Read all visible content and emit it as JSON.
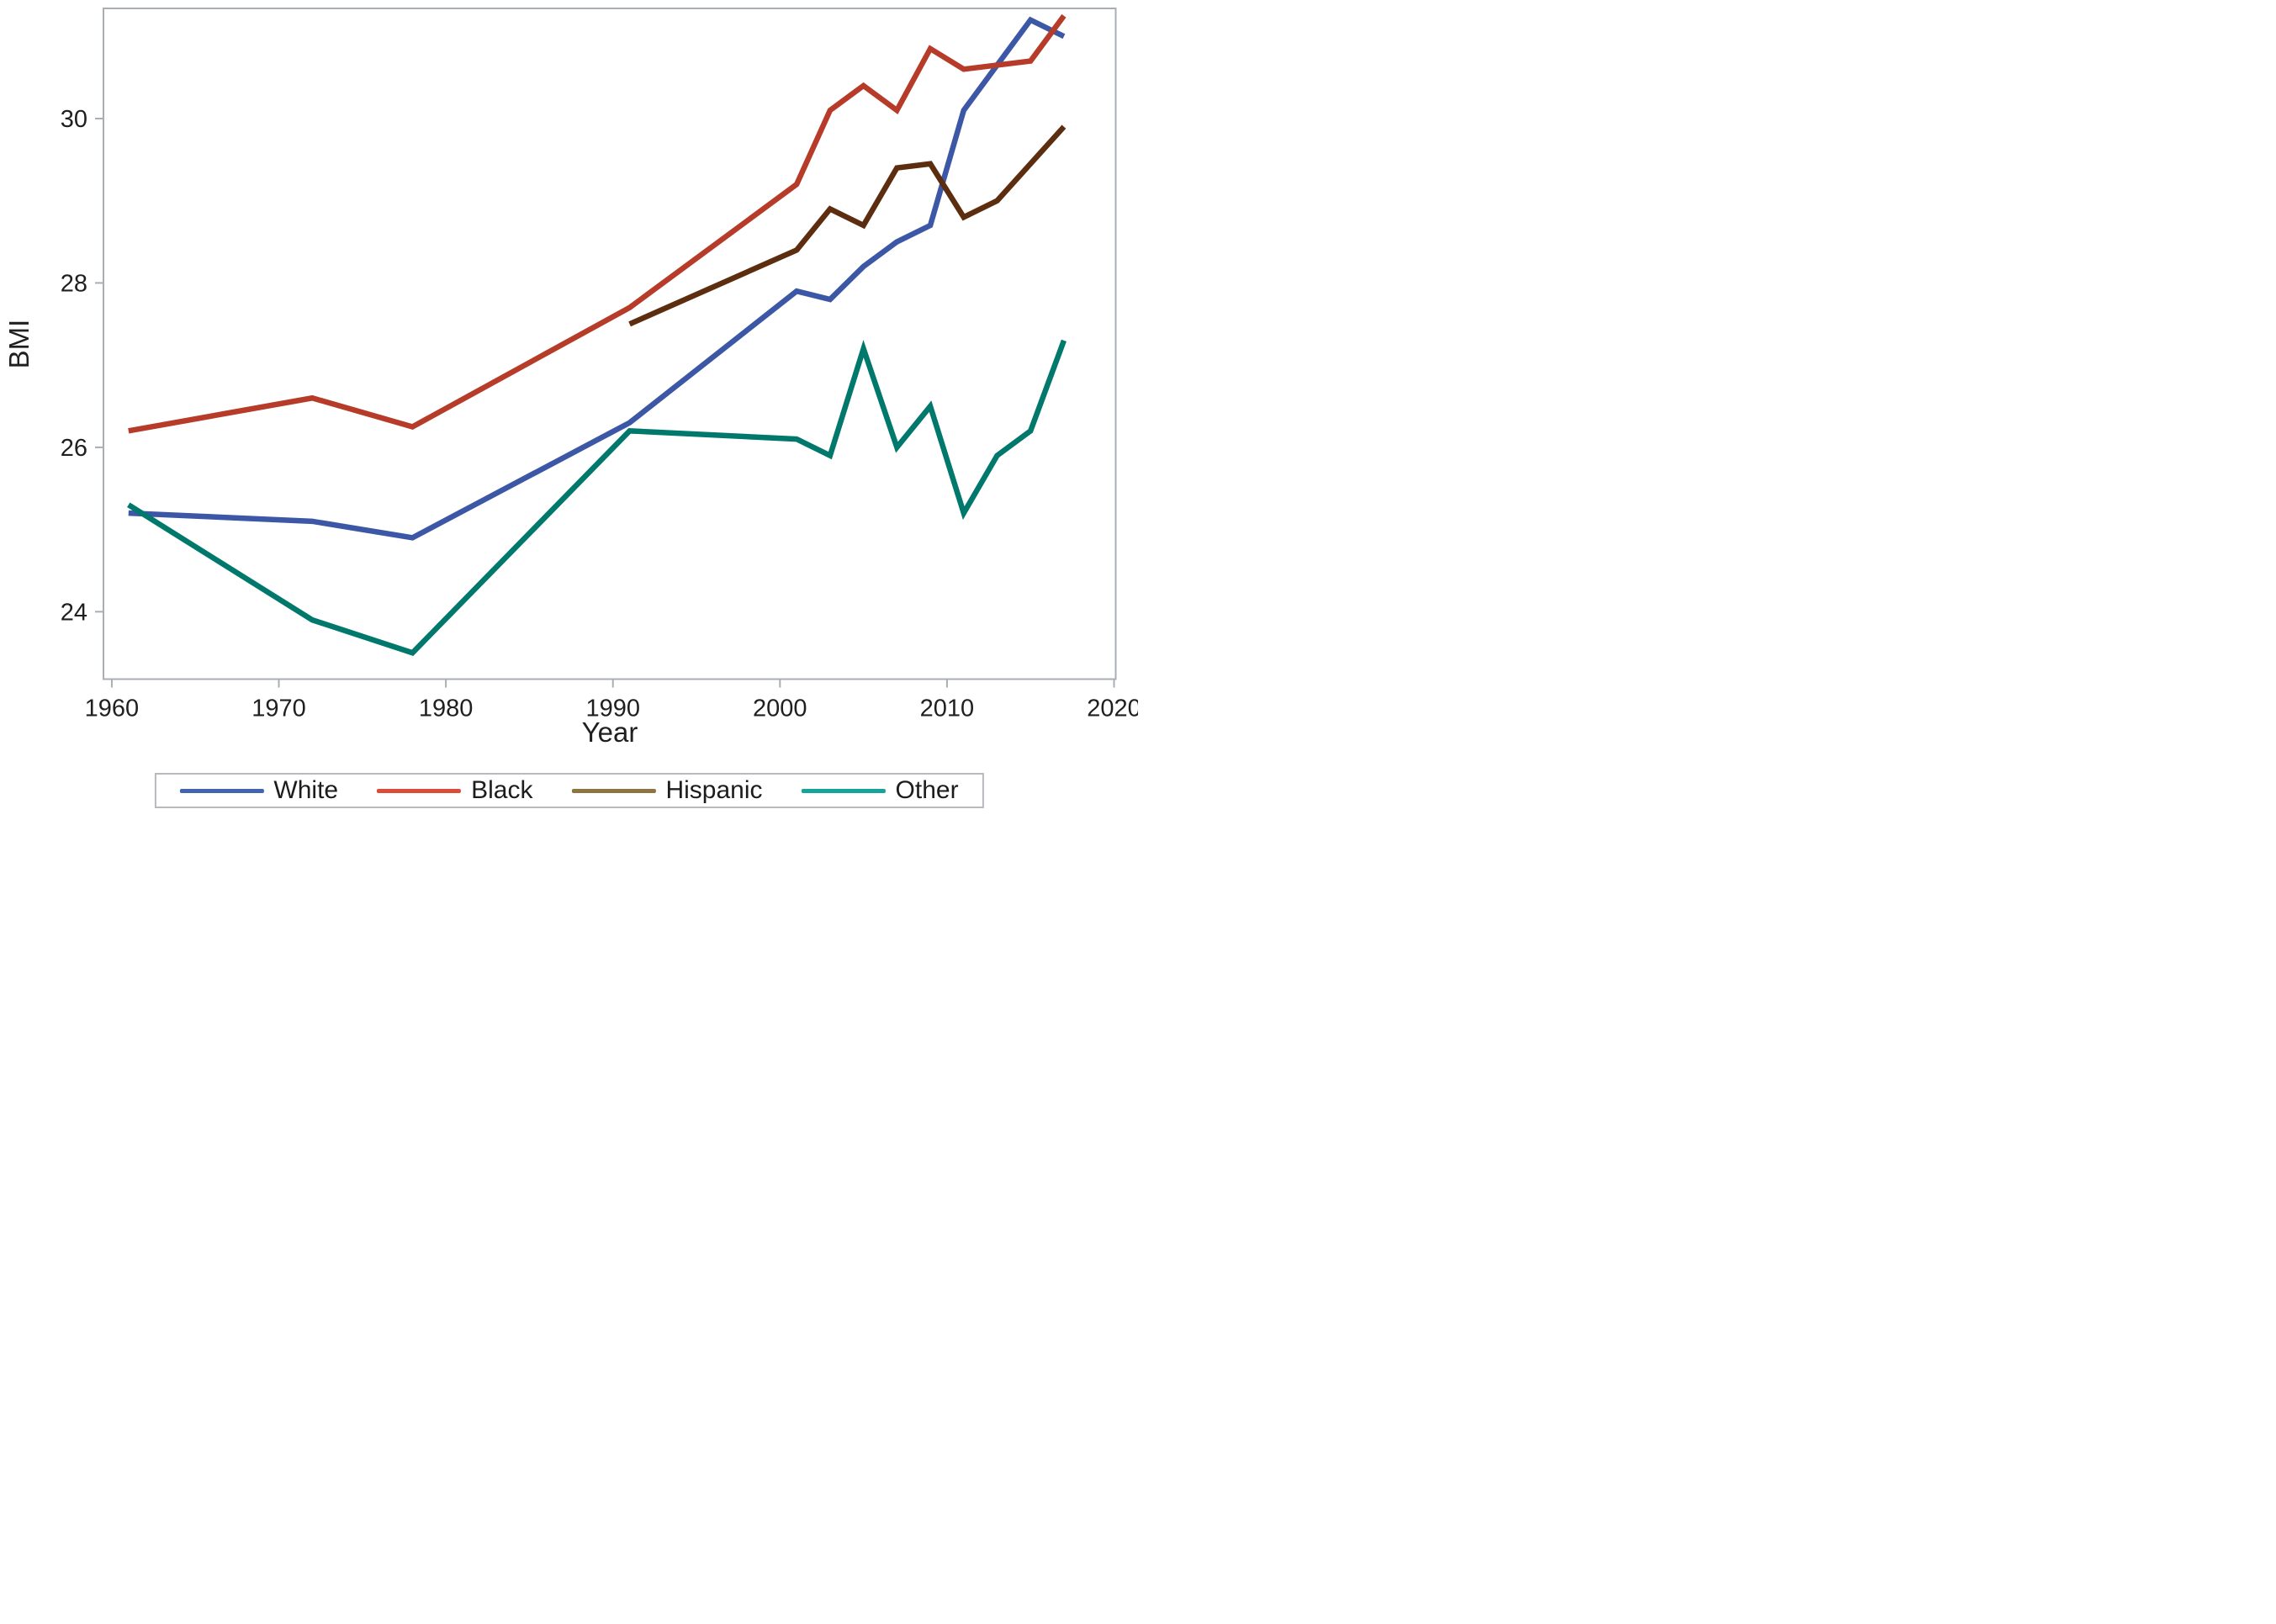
{
  "page": {
    "background": "#FFFFFF",
    "frame_color": "#A9AEB4",
    "text_color": "#1F1F1F"
  },
  "chart_data": {
    "type": "line",
    "title": "",
    "xlabel": "Year",
    "ylabel": "BMI",
    "grid": false,
    "legend_position": "bottom",
    "x_range": [
      1959.5,
      2020.1
    ],
    "y_range": [
      23.18,
      31.34
    ],
    "x_ticks": [
      1960,
      1970,
      1980,
      1990,
      2000,
      2010,
      2020
    ],
    "y_ticks": [
      24,
      26,
      28,
      30
    ],
    "x": [
      1961,
      1972,
      1978,
      1991,
      2001,
      2003,
      2005,
      2007,
      2009,
      2011,
      2013,
      2015,
      2017
    ],
    "series": [
      {
        "name": "White",
        "color": "#3B57A6",
        "legend_color": "#4263AE",
        "values": [
          25.2,
          25.1,
          24.9,
          26.3,
          27.9,
          27.8,
          28.2,
          28.5,
          28.7,
          30.1,
          30.65,
          31.2,
          31.0
        ]
      },
      {
        "name": "Black",
        "color": "#B73B29",
        "legend_color": "#DE4C38",
        "values": [
          26.2,
          26.6,
          26.25,
          27.7,
          29.2,
          30.1,
          30.4,
          30.1,
          30.85,
          30.6,
          30.65,
          30.7,
          31.25
        ]
      },
      {
        "name": "Hispanic",
        "color": "#5C2D0E",
        "legend_color": "#8E7440",
        "values": [
          null,
          null,
          null,
          27.5,
          28.4,
          28.9,
          28.7,
          29.4,
          29.45,
          28.8,
          29.0,
          29.45,
          29.9
        ]
      },
      {
        "name": "Other",
        "color": "#00786C",
        "legend_color": "#15A49A",
        "values": [
          25.3,
          23.9,
          23.5,
          26.2,
          26.1,
          25.9,
          27.2,
          26.0,
          26.5,
          25.2,
          25.9,
          26.2,
          27.3
        ]
      }
    ]
  }
}
